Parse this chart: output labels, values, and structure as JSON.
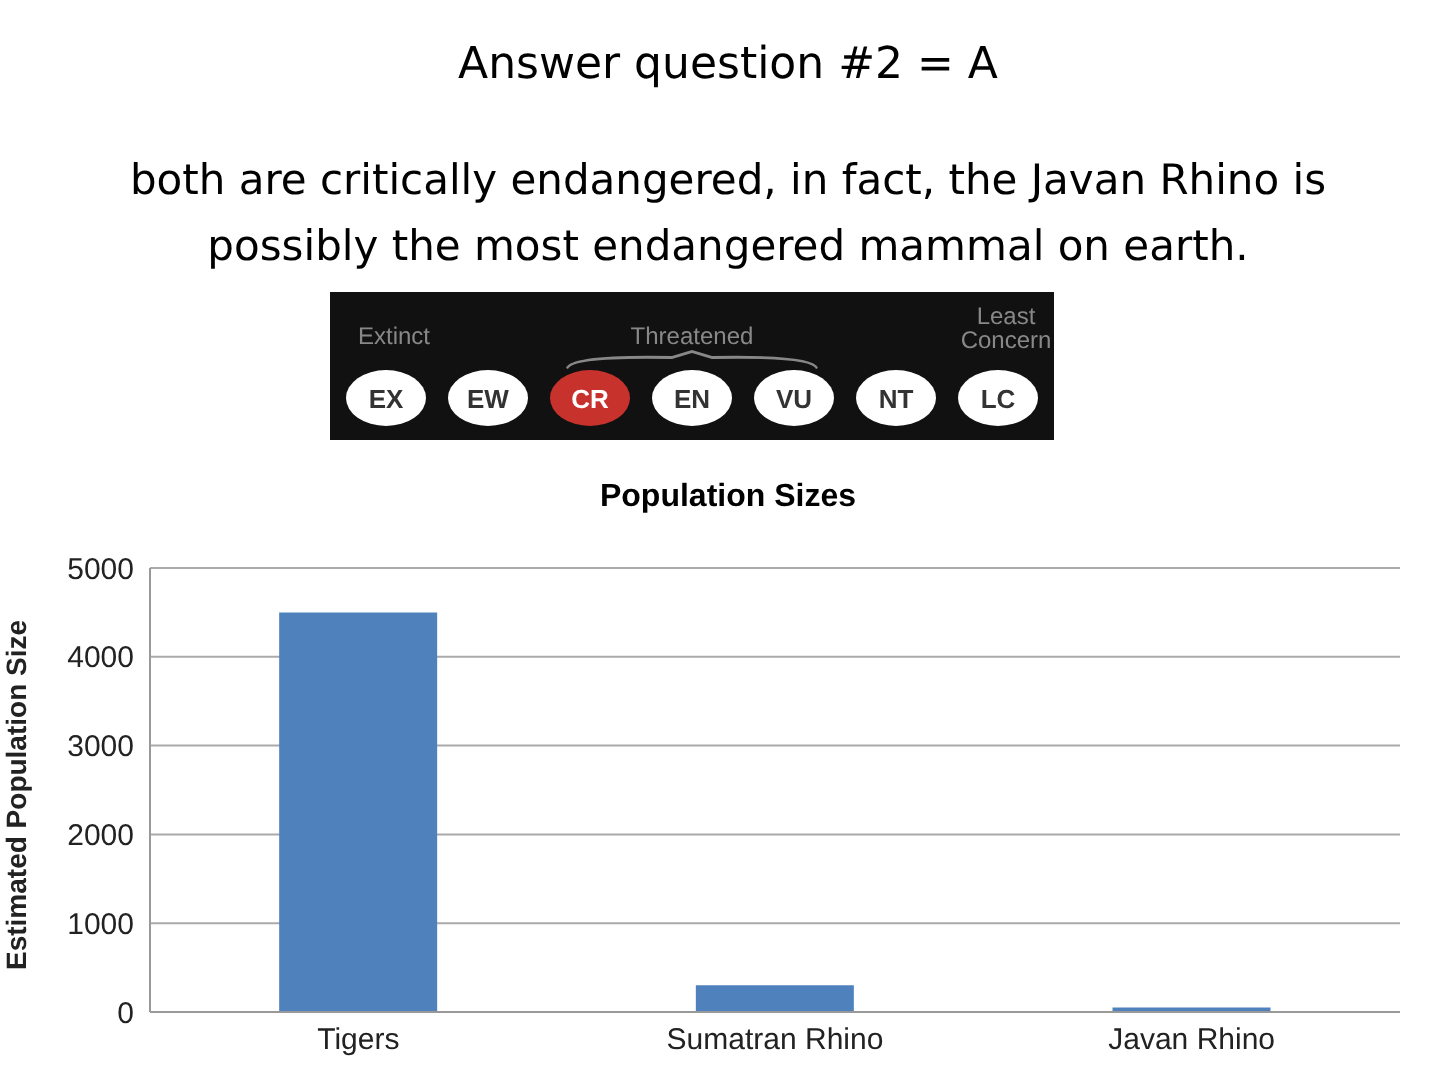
{
  "chart_data": {
    "type": "bar",
    "title": "Population Sizes",
    "ylabel": "Estimated Population Size",
    "annotations": [
      "Answer question #2 = A",
      "both are critically endangered, in fact, the Javan Rhino is possibly the most endangered mammal on earth.",
      "Extinct",
      "Threatened",
      "Least Concern",
      "EX",
      "EW",
      "CR",
      "EN",
      "VU",
      "NT",
      "LC"
    ],
    "categories": [
      "Tigers",
      "Sumatran Rhino",
      "Javan Rhino"
    ],
    "values": [
      4500,
      300,
      50
    ],
    "color": "#4f81bd",
    "ylim": [
      0,
      5000
    ],
    "yticks": [
      0,
      1000,
      2000,
      3000,
      4000,
      5000
    ],
    "grid": "y"
  }
}
